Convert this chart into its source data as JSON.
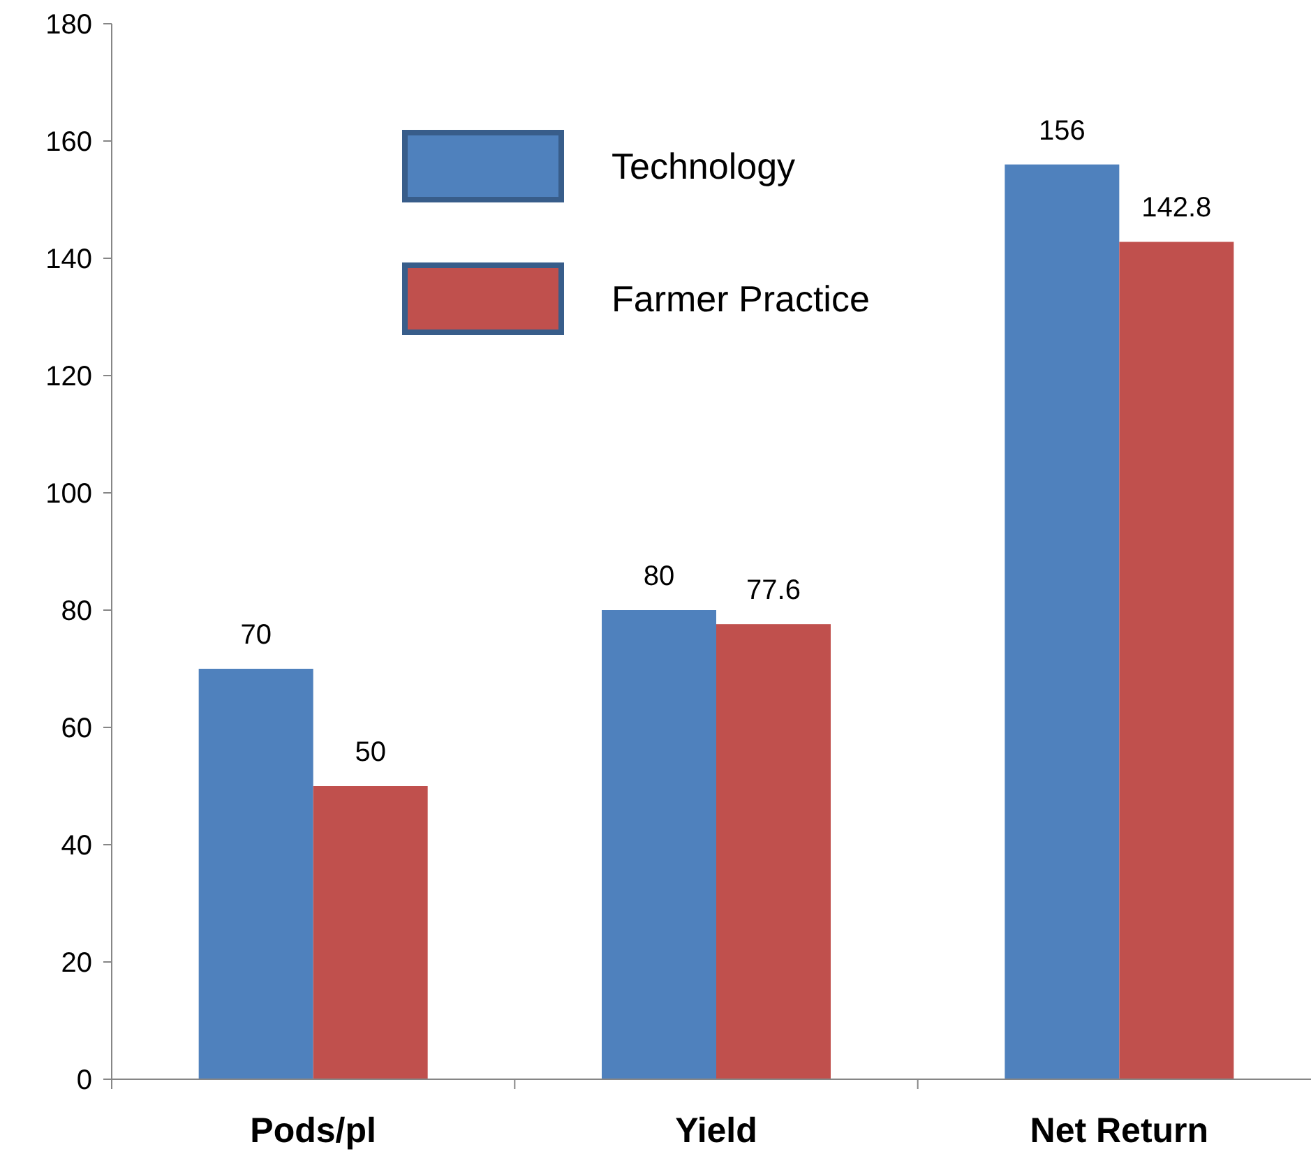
{
  "chart_data": {
    "type": "bar",
    "categories": [
      "Pods/pl",
      "Yield",
      "Net Return"
    ],
    "series": [
      {
        "name": "Technology",
        "color": "#4f81bd",
        "values": [
          70,
          80,
          156
        ]
      },
      {
        "name": "Farmer Practice",
        "color": "#c0504d",
        "values": [
          50,
          77.6,
          142.8
        ]
      }
    ],
    "ylim": [
      0,
      180
    ],
    "yticks": [
      0,
      20,
      40,
      60,
      80,
      100,
      120,
      140,
      160,
      180
    ],
    "data_labels": true,
    "legend": "top left",
    "grid": false
  }
}
